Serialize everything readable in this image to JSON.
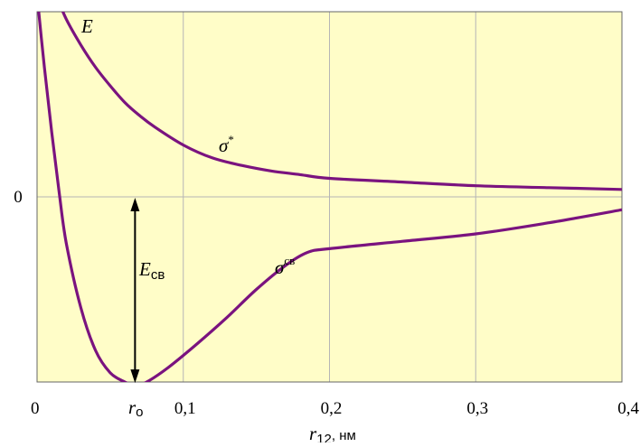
{
  "chart_data": {
    "type": "line",
    "xlabel": "r12, нм",
    "xlabel_main": "r",
    "xlabel_sub": "12",
    "xlabel_unit": ", нм",
    "xlim": [
      0,
      0.4
    ],
    "x_ticks": [
      {
        "value": 0,
        "label": "0"
      },
      {
        "value": 0.1,
        "label": "0,1"
      },
      {
        "value": 0.2,
        "label": "0,2"
      },
      {
        "value": 0.3,
        "label": "0,3"
      },
      {
        "value": 0.4,
        "label": "0,4"
      }
    ],
    "r0_tick": {
      "value": 0.07,
      "label_main": "r",
      "label_sub": "o"
    },
    "y_axis_label": "E",
    "y_ticks": [
      {
        "value": 0,
        "label": "0"
      }
    ],
    "ylim": [
      -1.0,
      1.0
    ],
    "grid": true,
    "colors": {
      "background": "#fffdc8",
      "curve": "#7a137f",
      "grid": "#b5b5b5",
      "axis": "#666666",
      "arrow": "#000000"
    },
    "series": [
      {
        "name": "σ*",
        "label_main": "σ",
        "label_sup": "*",
        "x": [
          0.013,
          0.02,
          0.03,
          0.04,
          0.05,
          0.06,
          0.07,
          0.08,
          0.1,
          0.12,
          0.14,
          0.16,
          0.18,
          0.2,
          0.25,
          0.3,
          0.35,
          0.4
        ],
        "y": [
          1.09,
          0.96,
          0.82,
          0.7,
          0.6,
          0.51,
          0.44,
          0.38,
          0.28,
          0.21,
          0.17,
          0.14,
          0.12,
          0.1,
          0.08,
          0.06,
          0.05,
          0.04
        ]
      },
      {
        "name": "σсв",
        "label_main": "σ",
        "label_sup": "св",
        "x": [
          0.0,
          0.005,
          0.01,
          0.015,
          0.02,
          0.03,
          0.04,
          0.05,
          0.06,
          0.067,
          0.075,
          0.09,
          0.11,
          0.13,
          0.15,
          0.17,
          0.185,
          0.2,
          0.25,
          0.3,
          0.35,
          0.4
        ],
        "y": [
          1.09,
          0.7,
          0.35,
          0.03,
          -0.25,
          -0.6,
          -0.83,
          -0.95,
          -1.0,
          -1.02,
          -1.0,
          -0.92,
          -0.79,
          -0.65,
          -0.5,
          -0.37,
          -0.3,
          -0.28,
          -0.24,
          -0.2,
          -0.14,
          -0.07
        ]
      }
    ],
    "annotations": [
      {
        "type": "double-arrow",
        "x": 0.067,
        "y_from": -1.02,
        "y_to": 0.0,
        "label_main": "E",
        "label_sub": "св"
      }
    ]
  }
}
